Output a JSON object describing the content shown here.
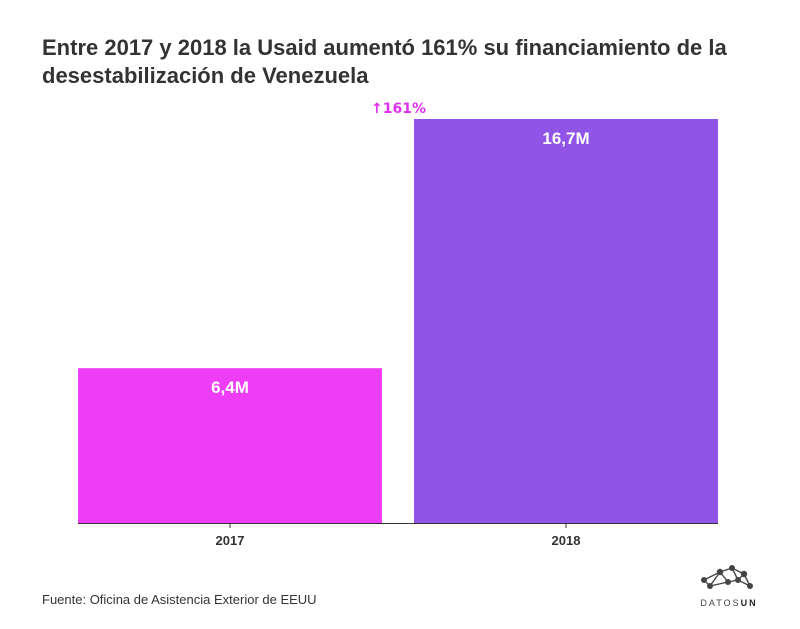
{
  "title": "Entre 2017 y 2018 la Usaid aumentó 161% su financiamiento de la desestabilización de Venezuela",
  "source": "Fuente: Oficina de Asistencia Exterior de EEUU",
  "logo": {
    "text_light": "DATOS",
    "text_bold": "UN",
    "icon": "network-molecule-icon"
  },
  "chart_data": {
    "type": "bar",
    "categories": [
      "2017",
      "2018"
    ],
    "values": [
      6.4,
      16.7
    ],
    "value_labels": [
      "6,4M",
      "16,7M"
    ],
    "unit": "M",
    "colors": [
      "#ee3df7",
      "#9055e6"
    ],
    "annotation": {
      "text": "161%",
      "arrow": "↑",
      "color": "#e02ff0"
    },
    "ylim": [
      0,
      16.7
    ],
    "grid": false,
    "title": "Entre 2017 y 2018 la Usaid aumentó 161% su financiamiento de la desestabilización de Venezuela"
  }
}
